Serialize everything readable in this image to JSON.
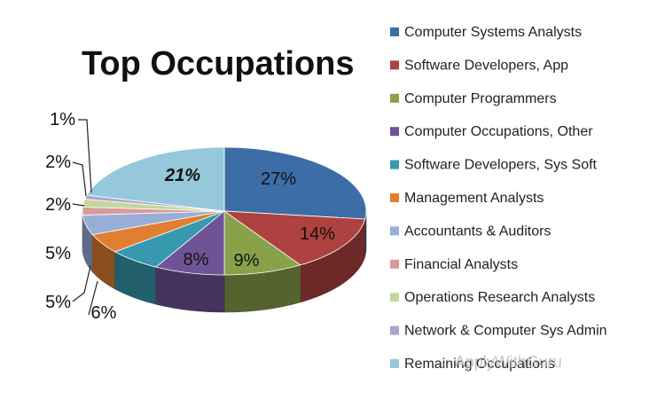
{
  "chart_data": {
    "type": "pie",
    "title": "Top Occupations",
    "legend_position": "right",
    "series": [
      {
        "name": "Computer Systems Analysts",
        "value": 27,
        "label": "27%",
        "color": "#3d6da6"
      },
      {
        "name": "Software Developers, App",
        "value": 14,
        "label": "14%",
        "color": "#ae4240"
      },
      {
        "name": "Computer Programmers",
        "value": 9,
        "label": "9%",
        "color": "#89a24a"
      },
      {
        "name": "Computer Occupations, Other",
        "value": 8,
        "label": "8%",
        "color": "#6e5496"
      },
      {
        "name": "Software Developers, Sys Soft",
        "value": 6,
        "label": "6%",
        "color": "#3699af"
      },
      {
        "name": "Management Analysts",
        "value": 5,
        "label": "5%",
        "color": "#e07f32"
      },
      {
        "name": "Accountants & Auditors",
        "value": 5,
        "label": "5%",
        "color": "#98aed9"
      },
      {
        "name": "Financial Analysts",
        "value": 2,
        "label": "2%",
        "color": "#d99b98"
      },
      {
        "name": "Operations Research Analysts",
        "value": 2,
        "label": "2%",
        "color": "#c1d79f"
      },
      {
        "name": "Network & Computer Sys Admin",
        "value": 1,
        "label": "1%",
        "color": "#b0a2c8"
      },
      {
        "name": "Remaining Occupations",
        "value": 21,
        "label": "21%",
        "color": "#95c8db"
      }
    ]
  },
  "watermark": "ApplyWithGuru"
}
